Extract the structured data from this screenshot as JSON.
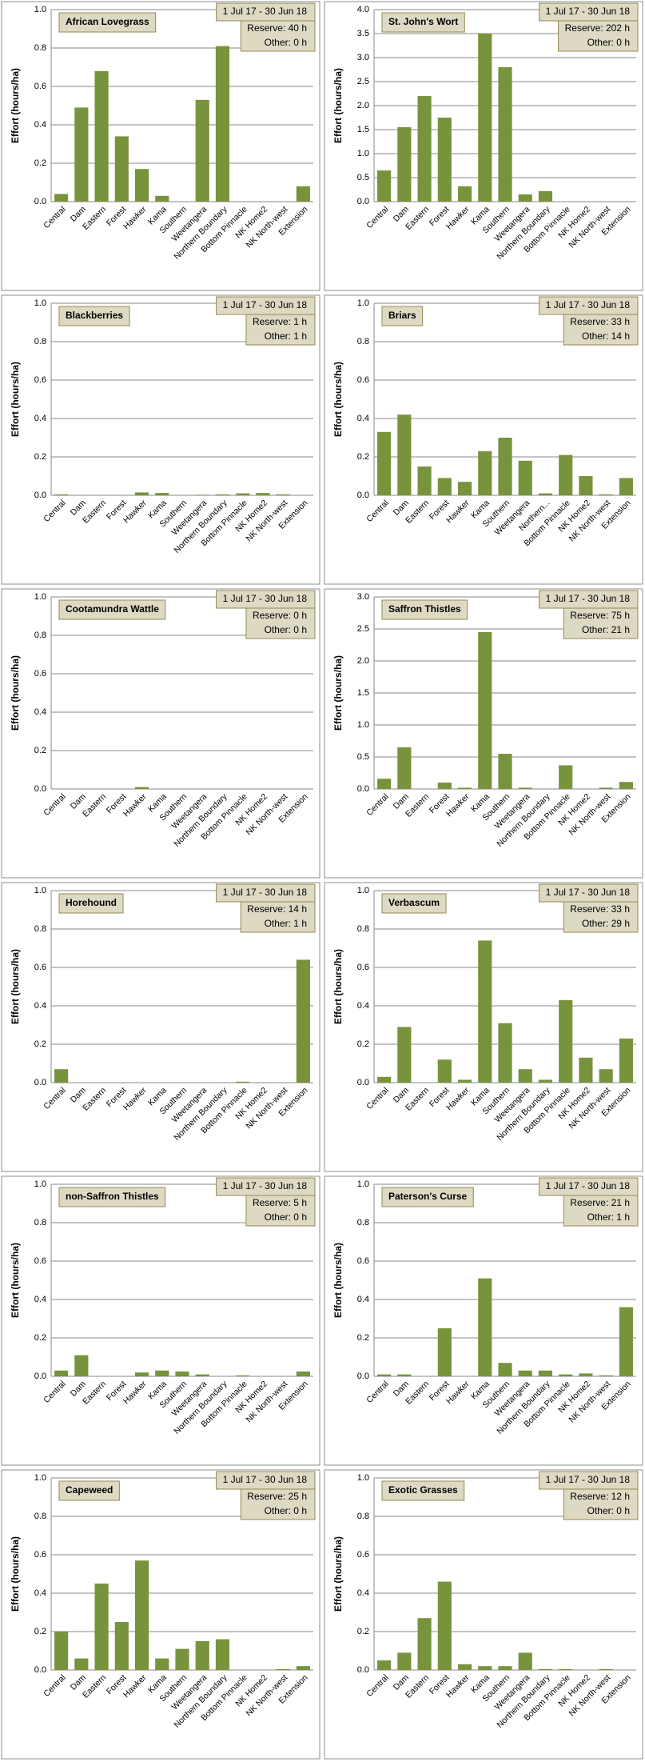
{
  "chart_data": [
    {
      "type": "bar",
      "title": "African Lovegrass",
      "date_range": "1 Jul 17  -  30 Jun 18",
      "reserve": "Reserve: 40 h",
      "other": "Other: 0 h",
      "y_label": "Effort  (hours/ha)",
      "color": "#77933c",
      "grid": true,
      "categories": [
        "Central",
        "Dam",
        "Eastern",
        "Forest",
        "Hawker",
        "Kama",
        "Southern",
        "Weetangera",
        "Northern Boundary",
        "Bottom Pinnacle",
        "NK Home2",
        "NK North-west",
        "Extension"
      ],
      "values": [
        0.04,
        0.49,
        0.68,
        0.34,
        0.17,
        0.03,
        0,
        0.53,
        0.81,
        0,
        0,
        0,
        0.08
      ],
      "ylim": [
        0,
        1
      ],
      "yticks": [
        {
          "value": 0,
          "label": "0.0"
        },
        0.2,
        0.4,
        0.6,
        0.8,
        {
          "value": 1,
          "label": "1.0"
        }
      ]
    },
    {
      "type": "bar",
      "title": "St. John's Wort",
      "date_range": "1 Jul 17  -  30 Jun 18",
      "reserve": "Reserve: 202 h",
      "other": "Other: 0 h",
      "y_label": "Effort  (hours/ha)",
      "color": "#77933c",
      "grid": true,
      "categories": [
        "Central",
        "Dam",
        "Eastern",
        "Forest",
        "Hawker",
        "Kama",
        "Southern",
        "Weetangera",
        "Northern Boundary",
        "Bottom Pinnacle",
        "NK Home2",
        "NK North-west",
        "Extension"
      ],
      "values": [
        0.65,
        1.55,
        2.2,
        1.75,
        0.32,
        3.5,
        2.8,
        0.15,
        0.22,
        0,
        0,
        0,
        0
      ],
      "ylim": [
        0,
        4
      ],
      "yticks": [
        {
          "value": 0,
          "label": "0.0"
        },
        0.5,
        {
          "value": 1,
          "label": "1.0"
        },
        1.5,
        {
          "value": 2,
          "label": "2.0"
        },
        2.5,
        {
          "value": 3,
          "label": "3.0"
        },
        3.5,
        {
          "value": 4,
          "label": "4.0"
        }
      ]
    },
    {
      "type": "bar",
      "title": "Blackberries",
      "date_range": "1 Jul 17  -  30 Jun 18",
      "reserve": "Reserve: 1 h",
      "other": "Other: 1 h",
      "y_label": "Effort  (hours/ha)",
      "color": "#77933c",
      "grid": true,
      "categories": [
        "Central",
        "Dam",
        "Eastern",
        "Forest",
        "Hawker",
        "Kama",
        "Southern",
        "Weetangera",
        "Northern Boundary",
        "Bottom Pinnacle",
        "NK Home2",
        "NK North-west",
        "Extension"
      ],
      "values": [
        0.005,
        0,
        0,
        0,
        0.015,
        0.012,
        0,
        0.003,
        0.005,
        0.01,
        0.012,
        0.005,
        0
      ],
      "ylim": [
        0,
        1
      ],
      "yticks": [
        {
          "value": 0,
          "label": "0.0"
        },
        0.2,
        0.4,
        0.6,
        0.8,
        {
          "value": 1,
          "label": "1.0"
        }
      ]
    },
    {
      "type": "bar",
      "title": "Briars",
      "date_range": "1 Jul 17  -  30 Jun 18",
      "reserve": "Reserve: 33 h",
      "other": "Other: 14 h",
      "y_label": "Effort  (hours/ha)",
      "color": "#77933c",
      "grid": true,
      "categories": [
        "Central",
        "Dam",
        "Eastern",
        "Forest",
        "Hawker",
        "Kama",
        "Southern",
        "Weetangera",
        "Northern...",
        "Bottom Pinnacle",
        "NK Home2",
        "NK North-west",
        "Extension"
      ],
      "values": [
        0.33,
        0.42,
        0.15,
        0.09,
        0.07,
        0.23,
        0.3,
        0.18,
        0.01,
        0.21,
        0.1,
        0.005,
        0.09
      ],
      "ylim": [
        0,
        1
      ],
      "yticks": [
        {
          "value": 0,
          "label": "0.0"
        },
        0.2,
        0.4,
        0.6,
        0.8,
        {
          "value": 1,
          "label": "1.0"
        }
      ]
    },
    {
      "type": "bar",
      "title": "Cootamundra Wattle",
      "date_range": "1 Jul 17  -  30 Jun 18",
      "reserve": "Reserve: 0 h",
      "other": "Other: 0 h",
      "y_label": "Effort  (hours/ha)",
      "color": "#77933c",
      "grid": true,
      "categories": [
        "Central",
        "Dam",
        "Eastern",
        "Forest",
        "Hawker",
        "Kama",
        "Southern",
        "Weetangera",
        "Northern Boundary",
        "Bottom Pinnacle",
        "NK Home2",
        "NK North-west",
        "Extension"
      ],
      "values": [
        0,
        0,
        0,
        0,
        0.01,
        0,
        0,
        0,
        0,
        0,
        0,
        0,
        0
      ],
      "ylim": [
        0,
        1
      ],
      "yticks": [
        {
          "value": 0,
          "label": "0.0"
        },
        0.2,
        0.4,
        0.6,
        0.8,
        {
          "value": 1,
          "label": "1.0"
        }
      ]
    },
    {
      "type": "bar",
      "title": "Saffron Thistles",
      "date_range": "1 Jul 17  -  30 Jun 18",
      "reserve": "Reserve: 75 h",
      "other": "Other: 21 h",
      "y_label": "Effort  (hours/ha)",
      "color": "#77933c",
      "grid": true,
      "categories": [
        "Central",
        "Dam",
        "Eastern",
        "Forest",
        "Hawker",
        "Kama",
        "Southern",
        "Weetangera",
        "Northern Boundary",
        "Bottom Pinnacle",
        "NK Home2",
        "NK North-west",
        "Extension"
      ],
      "values": [
        0.16,
        0.65,
        0,
        0.1,
        0.02,
        2.45,
        0.55,
        0.02,
        0,
        0.37,
        0,
        0.02,
        0.11
      ],
      "ylim": [
        0,
        3
      ],
      "yticks": [
        {
          "value": 0,
          "label": "0.0"
        },
        0.5,
        {
          "value": 1,
          "label": "1.0"
        },
        1.5,
        {
          "value": 2,
          "label": "2.0"
        },
        2.5,
        {
          "value": 3,
          "label": "3.0"
        }
      ]
    },
    {
      "type": "bar",
      "title": "Horehound",
      "date_range": "1 Jul 17  -  30 Jun 18",
      "reserve": "Reserve: 14 h",
      "other": "Other: 1 h",
      "y_label": "Effort  (hours/ha)",
      "color": "#77933c",
      "grid": true,
      "categories": [
        "Central",
        "Dam",
        "Eastern",
        "Forest",
        "Hawker",
        "Kama",
        "Southern",
        "Weetangera",
        "Northern Boundary",
        "Bottom Pinnacle",
        "NK Home2",
        "NK North-west",
        "Extension"
      ],
      "values": [
        0.07,
        0,
        0,
        0,
        0,
        0,
        0,
        0,
        0,
        0.005,
        0,
        0,
        0.64
      ],
      "ylim": [
        0,
        1
      ],
      "yticks": [
        {
          "value": 0,
          "label": "0.0"
        },
        0.2,
        0.4,
        0.6,
        0.8,
        {
          "value": 1,
          "label": "1.0"
        }
      ]
    },
    {
      "type": "bar",
      "title": "Verbascum",
      "date_range": "1 Jul 17  -  30 Jun 18",
      "reserve": "Reserve: 33 h",
      "other": "Other: 29 h",
      "y_label": "Effort  (hours/ha)",
      "color": "#77933c",
      "grid": true,
      "categories": [
        "Central",
        "Dam",
        "Eastern",
        "Forest",
        "Hawker",
        "Kama",
        "Southern",
        "Weetangera",
        "Northern Boundary",
        "Bottom Pinnacle",
        "NK Home2",
        "NK North-west",
        "Extension"
      ],
      "values": [
        0.03,
        0.29,
        0,
        0.12,
        0.015,
        0.74,
        0.31,
        0.07,
        0.015,
        0.43,
        0.13,
        0.07,
        0.23
      ],
      "ylim": [
        0,
        1
      ],
      "yticks": [
        {
          "value": 0,
          "label": "0.0"
        },
        0.2,
        0.4,
        0.6,
        0.8,
        {
          "value": 1,
          "label": "1.0"
        }
      ]
    },
    {
      "type": "bar",
      "title": "non-Saffron Thistles",
      "date_range": "1 Jul 17  -  30 Jun 18",
      "reserve": "Reserve: 5 h",
      "other": "Other: 0 h",
      "y_label": "Effort  (hours/ha)",
      "color": "#77933c",
      "grid": true,
      "categories": [
        "Central",
        "Dam",
        "Eastern",
        "Forest",
        "Hawker",
        "Kama",
        "Southern",
        "Weetangera",
        "Northern Boundary",
        "Bottom Pinnacle",
        "NK Home2",
        "NK North-west",
        "Extension"
      ],
      "values": [
        0.03,
        0.11,
        0,
        0,
        0.02,
        0.03,
        0.025,
        0.01,
        0,
        0.005,
        0,
        0,
        0.025
      ],
      "ylim": [
        0,
        1
      ],
      "yticks": [
        {
          "value": 0,
          "label": "0.0"
        },
        0.2,
        0.4,
        0.6,
        0.8,
        {
          "value": 1,
          "label": "1.0"
        }
      ]
    },
    {
      "type": "bar",
      "title": "Paterson's Curse",
      "date_range": "1 Jul 17  -  30 Jun 18",
      "reserve": "Reserve: 21 h",
      "other": "Other: 1 h",
      "y_label": "Effort  (hours/ha)",
      "color": "#77933c",
      "grid": true,
      "categories": [
        "Central",
        "Dam",
        "Eastern",
        "Forest",
        "Hawker",
        "Kama",
        "Southern",
        "Weetangera",
        "Northern Boundary",
        "Bottom Pinnacle",
        "NK Home2",
        "NK North-west",
        "Extension"
      ],
      "values": [
        0.01,
        0.01,
        0,
        0.25,
        0,
        0.51,
        0.07,
        0.03,
        0.03,
        0.01,
        0.015,
        0.005,
        0.36
      ],
      "ylim": [
        0,
        1
      ],
      "yticks": [
        {
          "value": 0,
          "label": "0.0"
        },
        0.2,
        0.4,
        0.6,
        0.8,
        {
          "value": 1,
          "label": "1.0"
        }
      ]
    },
    {
      "type": "bar",
      "title": "Capeweed",
      "date_range": "1 Jul 17  -  30 Jun 18",
      "reserve": "Reserve: 25 h",
      "other": "Other: 0 h",
      "y_label": "Effort  (hours/ha)",
      "color": "#77933c",
      "grid": true,
      "categories": [
        "Central",
        "Dam",
        "Eastern",
        "Forest",
        "Hawker",
        "Kama",
        "Southern",
        "Weetangera",
        "Northern Boundary",
        "Bottom Pinnacle",
        "NK Home2",
        "NK North-west",
        "Extension"
      ],
      "values": [
        0.2,
        0.06,
        0.45,
        0.25,
        0.57,
        0.06,
        0.11,
        0.15,
        0.16,
        0,
        0,
        0.005,
        0.02
      ],
      "ylim": [
        0,
        1
      ],
      "yticks": [
        {
          "value": 0,
          "label": "0.0"
        },
        0.2,
        0.4,
        0.6,
        0.8,
        {
          "value": 1,
          "label": "1.0"
        }
      ]
    },
    {
      "type": "bar",
      "title": "Exotic Grasses",
      "date_range": "1 Jul 17  -  30 Jun 18",
      "reserve": "Reserve: 12 h",
      "other": "Other: 0 h",
      "y_label": "Effort  (hours/ha)",
      "color": "#77933c",
      "grid": true,
      "categories": [
        "Central",
        "Dam",
        "Eastern",
        "Forest",
        "Hawker",
        "Kama",
        "Southern",
        "Weetangera",
        "Northern Boundary",
        "Bottom Pinnacle",
        "NK Home2",
        "NK North-west",
        "Extension"
      ],
      "values": [
        0.05,
        0.09,
        0.27,
        0.46,
        0.03,
        0.02,
        0.02,
        0.09,
        0.005,
        0.005,
        0,
        0.005,
        0
      ],
      "ylim": [
        0,
        1
      ],
      "yticks": [
        {
          "value": 0,
          "label": "0.0"
        },
        0.2,
        0.4,
        0.6,
        0.8,
        {
          "value": 1,
          "label": "1.0"
        }
      ]
    }
  ]
}
